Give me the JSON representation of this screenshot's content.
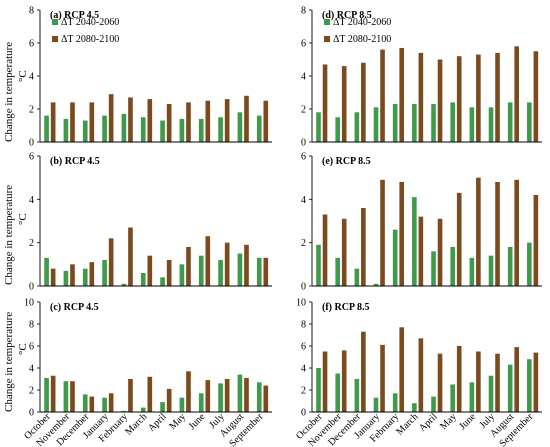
{
  "ylabel": "Change in temperature",
  "yunit": "°C",
  "colors": {
    "series1": "#3f9a4b",
    "series2": "#7b4a1e",
    "axis": "#000000"
  },
  "chart_data": [
    {
      "type": "bar",
      "panel": "(a)",
      "title": "RCP 4.5",
      "show_legend": true,
      "ylim": [
        0,
        8
      ],
      "yticks": [
        0,
        2,
        4,
        6,
        8
      ],
      "categories": [
        "October",
        "November",
        "December",
        "January",
        "February",
        "March",
        "April",
        "May",
        "June",
        "July",
        "August",
        "September"
      ],
      "series": [
        {
          "name": "ΔT 2040-2060",
          "values": [
            1.6,
            1.4,
            1.3,
            1.6,
            1.7,
            1.5,
            1.3,
            1.4,
            1.4,
            1.5,
            1.8,
            1.6
          ]
        },
        {
          "name": "ΔT 2080-2100",
          "values": [
            2.4,
            2.4,
            2.4,
            2.9,
            2.7,
            2.6,
            2.3,
            2.4,
            2.5,
            2.6,
            2.8,
            2.5
          ]
        }
      ]
    },
    {
      "type": "bar",
      "panel": "(b)",
      "title": "RCP 4.5",
      "show_legend": false,
      "ylim": [
        0,
        6
      ],
      "yticks": [
        0,
        2,
        4,
        6
      ],
      "categories": [
        "October",
        "November",
        "December",
        "January",
        "February",
        "March",
        "April",
        "May",
        "June",
        "July",
        "August",
        "September"
      ],
      "series": [
        {
          "name": "ΔT 2040-2060",
          "values": [
            1.3,
            0.7,
            0.8,
            1.2,
            0.1,
            0.6,
            0.4,
            1.0,
            1.4,
            1.2,
            1.5,
            1.3
          ]
        },
        {
          "name": "ΔT 2080-2100",
          "values": [
            0.8,
            1.0,
            1.1,
            2.2,
            2.7,
            1.4,
            1.2,
            1.8,
            2.3,
            2.0,
            1.9,
            1.3
          ]
        }
      ]
    },
    {
      "type": "bar",
      "panel": "(c)",
      "title": "RCP 4.5",
      "show_legend": false,
      "ylim": [
        0,
        10
      ],
      "yticks": [
        0,
        2,
        4,
        6,
        8,
        10
      ],
      "categories": [
        "October",
        "November",
        "December",
        "January",
        "February",
        "March",
        "April",
        "May",
        "June",
        "July",
        "August",
        "September"
      ],
      "series": [
        {
          "name": "ΔT 2040-2060",
          "values": [
            3.1,
            2.8,
            1.6,
            1.3,
            0.1,
            0.4,
            0.9,
            1.3,
            1.7,
            2.6,
            3.4,
            2.7
          ]
        },
        {
          "name": "ΔT 2080-2100",
          "values": [
            3.3,
            2.8,
            1.4,
            1.7,
            3.0,
            3.2,
            2.1,
            3.7,
            2.9,
            3.0,
            3.1,
            2.4
          ]
        }
      ]
    },
    {
      "type": "bar",
      "panel": "(d)",
      "title": "RCP 8.5",
      "show_legend": true,
      "ylim": [
        0,
        8
      ],
      "yticks": [
        0,
        2,
        4,
        6,
        8
      ],
      "categories": [
        "October",
        "November",
        "December",
        "January",
        "February",
        "March",
        "April",
        "May",
        "June",
        "July",
        "August",
        "September"
      ],
      "series": [
        {
          "name": "ΔT 2040-2060",
          "values": [
            1.8,
            1.5,
            1.8,
            2.1,
            2.3,
            2.3,
            2.3,
            2.4,
            2.1,
            2.1,
            2.4,
            2.4
          ]
        },
        {
          "name": "ΔT 2080-2100",
          "values": [
            4.7,
            4.6,
            4.8,
            5.6,
            5.7,
            5.4,
            5.0,
            5.2,
            5.3,
            5.4,
            5.8,
            5.5
          ]
        }
      ]
    },
    {
      "type": "bar",
      "panel": "(e)",
      "title": "RCP 8.5",
      "show_legend": false,
      "ylim": [
        0,
        6
      ],
      "yticks": [
        0,
        2,
        4,
        6
      ],
      "categories": [
        "October",
        "November",
        "December",
        "January",
        "February",
        "March",
        "April",
        "May",
        "June",
        "July",
        "August",
        "September"
      ],
      "series": [
        {
          "name": "ΔT 2040-2060",
          "values": [
            1.9,
            1.3,
            0.8,
            0.1,
            2.6,
            4.1,
            1.6,
            1.8,
            1.3,
            1.4,
            1.8,
            2.0
          ]
        },
        {
          "name": "ΔT 2080-2100",
          "values": [
            3.3,
            3.1,
            3.6,
            4.9,
            4.8,
            3.2,
            3.1,
            4.3,
            5.0,
            4.8,
            4.9,
            4.2
          ]
        }
      ]
    },
    {
      "type": "bar",
      "panel": "(f)",
      "title": "RCP 8.5",
      "show_legend": false,
      "ylim": [
        0,
        10
      ],
      "yticks": [
        0,
        2,
        4,
        6,
        8,
        10
      ],
      "categories": [
        "October",
        "November",
        "December",
        "January",
        "February",
        "March",
        "April",
        "May",
        "June",
        "July",
        "August",
        "September"
      ],
      "series": [
        {
          "name": "ΔT 2040-2060",
          "values": [
            4.0,
            3.5,
            3.0,
            1.3,
            1.7,
            0.8,
            1.4,
            2.5,
            2.7,
            3.3,
            4.3,
            4.8
          ]
        },
        {
          "name": "ΔT 2080-2100",
          "values": [
            5.5,
            5.6,
            7.3,
            6.1,
            7.7,
            6.7,
            5.3,
            6.0,
            5.5,
            5.3,
            5.9,
            5.4
          ]
        }
      ]
    }
  ]
}
